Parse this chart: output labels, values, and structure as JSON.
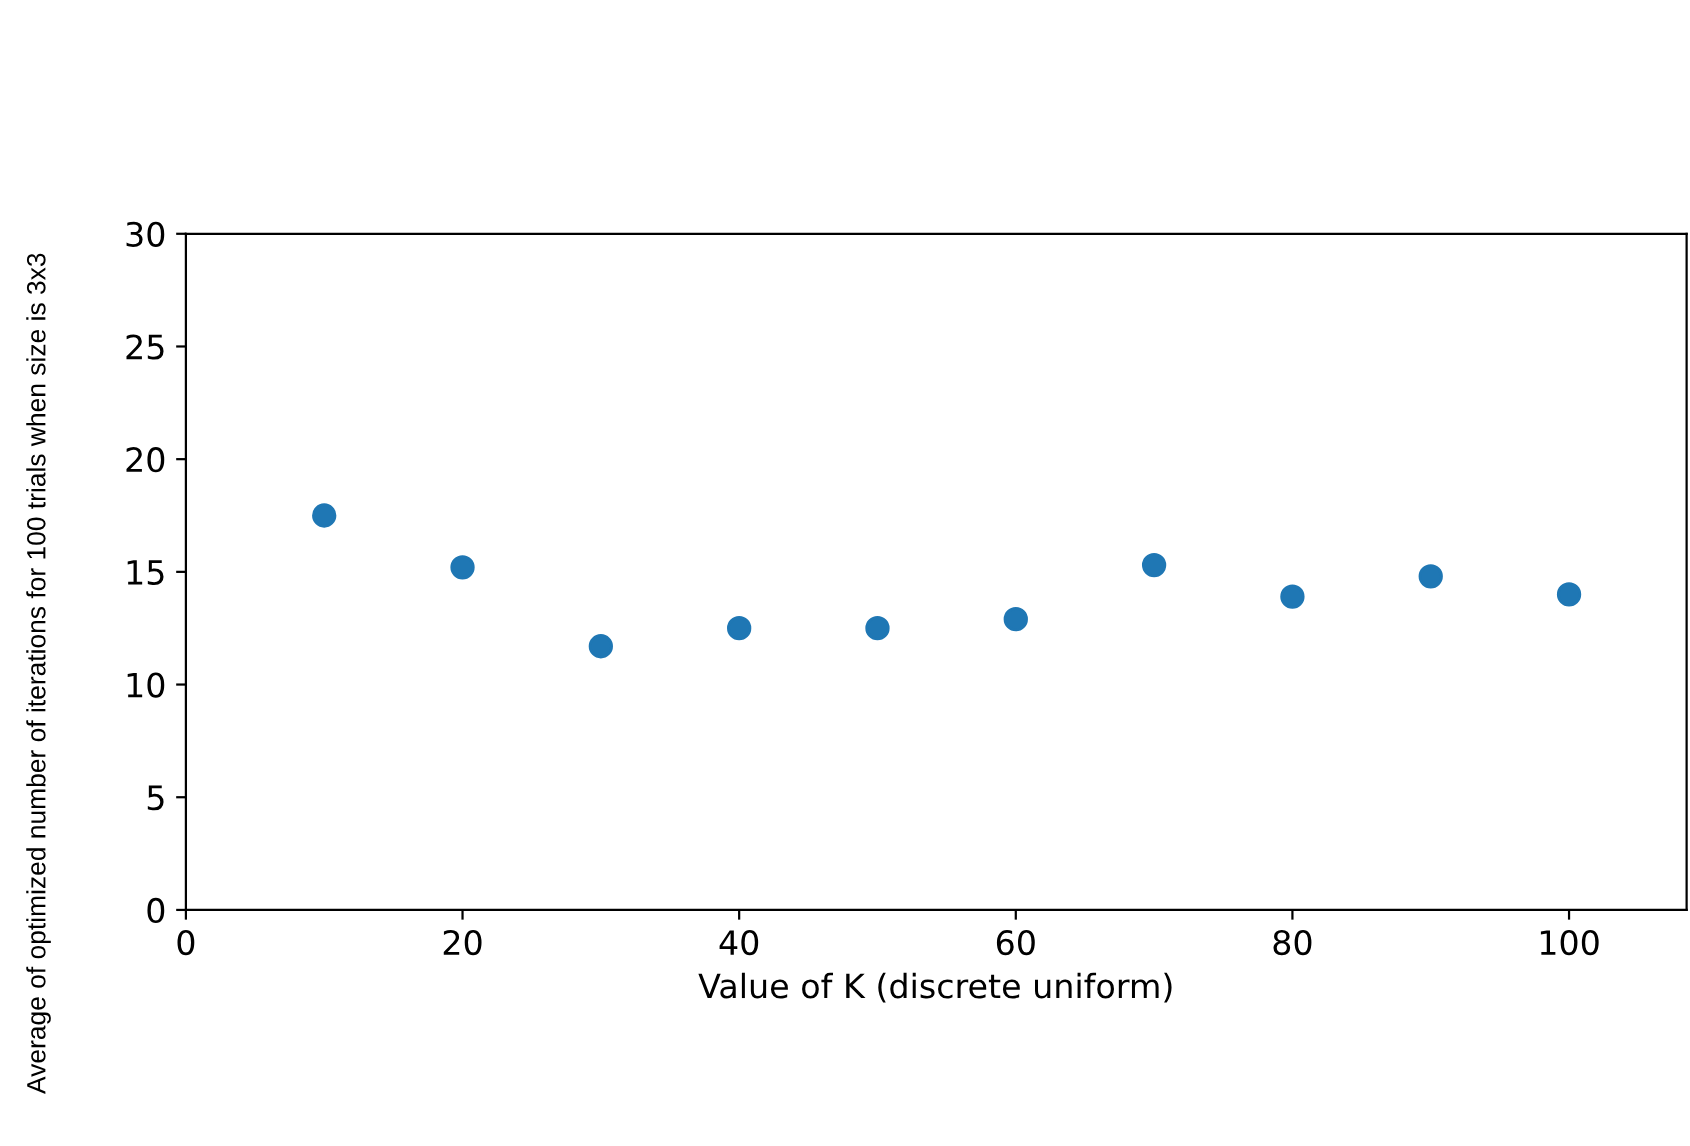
{
  "chart_data": {
    "type": "scatter",
    "xlabel": "Value of K (discrete uniform)",
    "ylabel": "Average of optimized number of iterations for 100 trials when size is 3x3",
    "x": [
      10,
      20,
      30,
      40,
      50,
      60,
      70,
      80,
      90,
      100
    ],
    "series": [
      {
        "color": "#1f77b4",
        "values": [
          17.5,
          15.2,
          11.7,
          12.5,
          12.5,
          12.9,
          15.3,
          13.9,
          14.8,
          14.0
        ]
      }
    ],
    "xlim": [
      0,
      108.5
    ],
    "ylim": [
      0,
      30
    ],
    "xticks": [
      0,
      20,
      40,
      60,
      80,
      100
    ],
    "yticks": [
      0,
      5,
      10,
      15,
      20,
      25,
      30
    ],
    "marker": "circle",
    "grid": false,
    "legend": false
  }
}
